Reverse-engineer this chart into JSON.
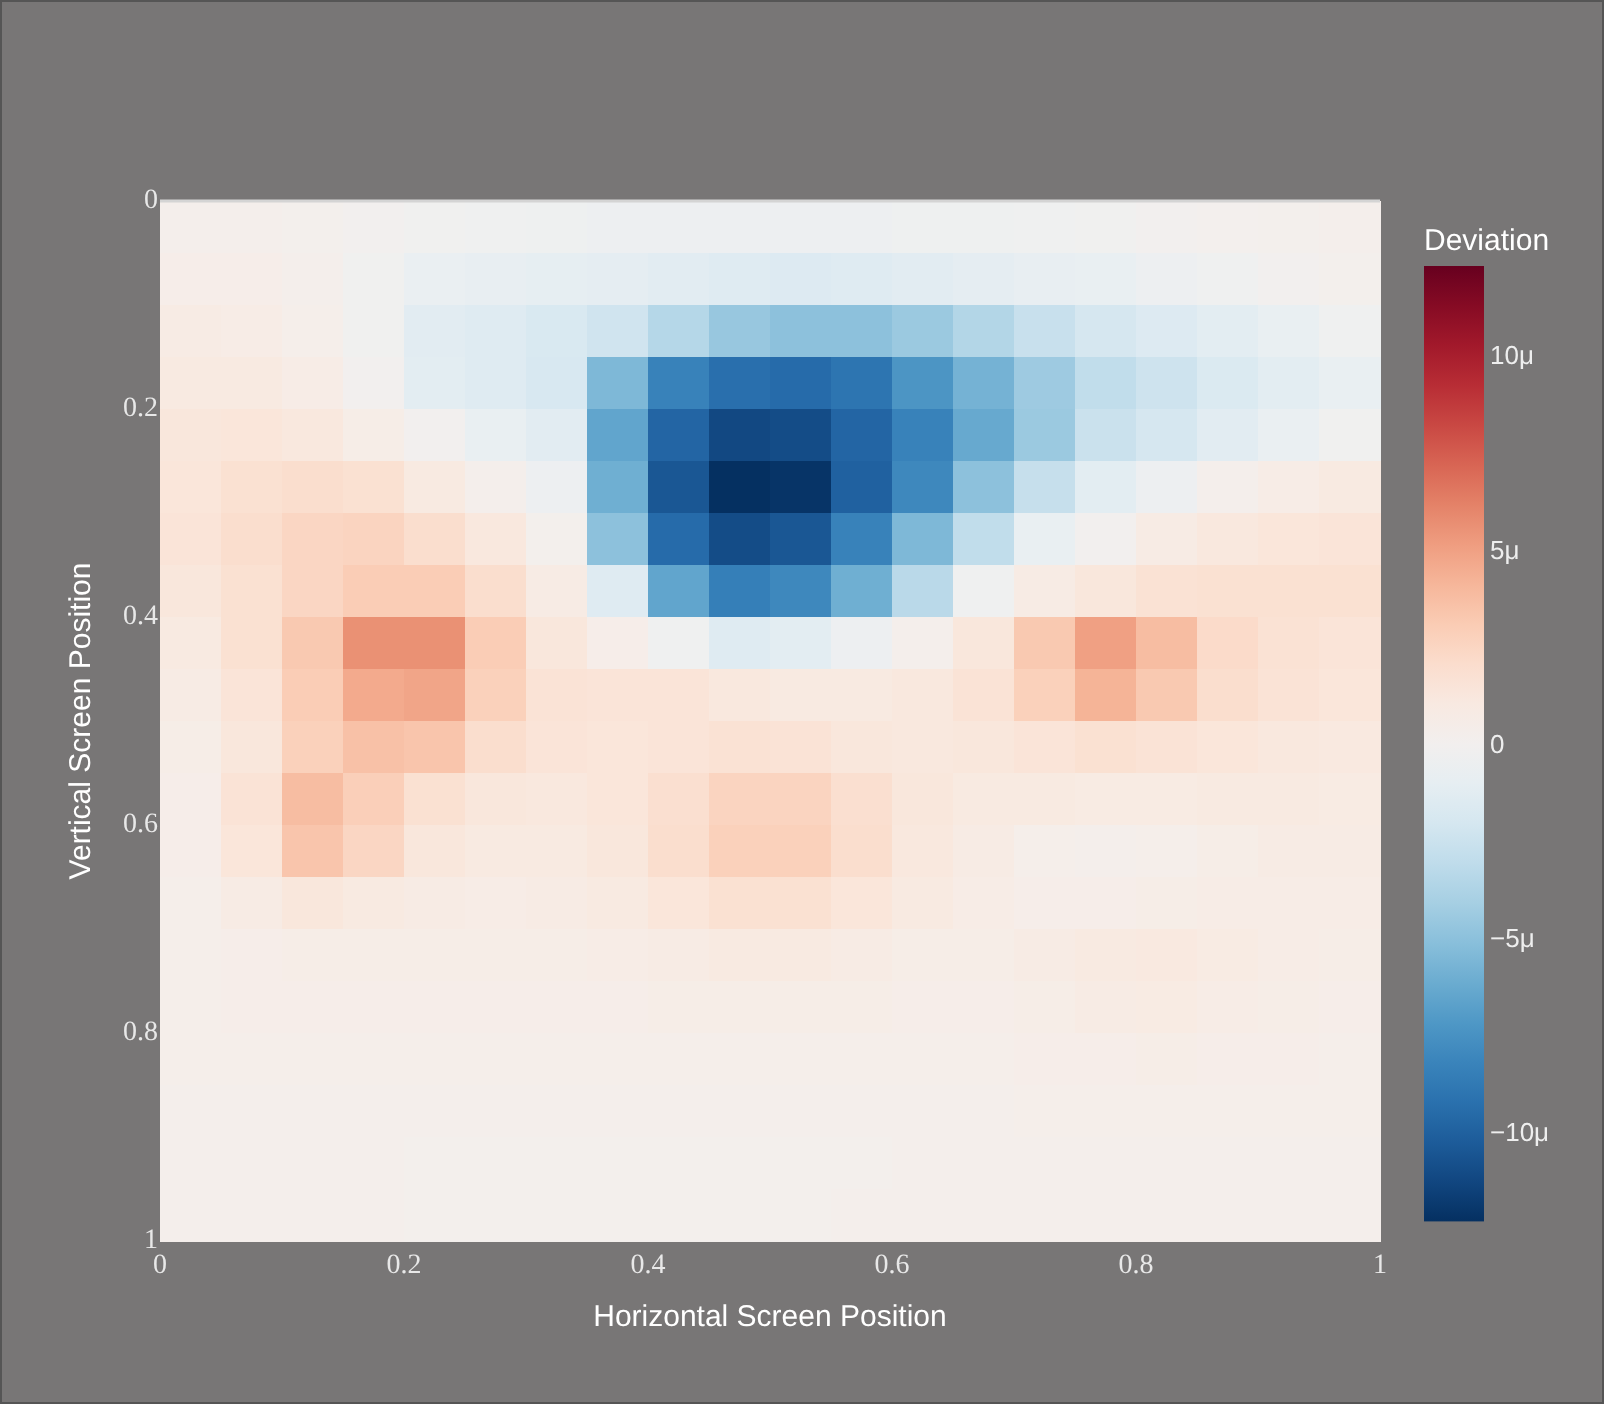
{
  "chart_data": {
    "type": "heatmap",
    "xlabel": "Horizontal Screen Position",
    "ylabel": "Vertical Screen Position",
    "clabel": "Deviation",
    "xlim": [
      0,
      1
    ],
    "xticks": [
      0,
      0.2,
      0.4,
      0.6,
      0.8,
      1
    ],
    "ylim": [
      1,
      0
    ],
    "yticks": [
      0,
      0.2,
      0.4,
      0.6,
      0.8,
      1
    ],
    "clim": [
      -12.3,
      12.3
    ],
    "cticks": [
      {
        "value": -10,
        "label": "−10μ"
      },
      {
        "value": -5,
        "label": "−5μ"
      },
      0,
      {
        "value": 5,
        "label": "5μ"
      },
      {
        "value": 10,
        "label": "10μ"
      }
    ],
    "cells": [
      [
        0.3,
        0.3,
        0.2,
        0.0,
        -0.2,
        -0.3,
        -0.4,
        -0.5,
        -0.5,
        -0.5,
        -0.5,
        -0.5,
        -0.4,
        -0.4,
        -0.3,
        -0.2,
        0.0,
        0.1,
        0.2,
        0.3
      ],
      [
        0.5,
        0.5,
        0.3,
        -0.2,
        -0.7,
        -0.9,
        -1.0,
        -1.1,
        -1.3,
        -1.5,
        -1.6,
        -1.5,
        -1.3,
        -1.1,
        -0.9,
        -0.8,
        -0.5,
        -0.3,
        0.0,
        0.2
      ],
      [
        0.8,
        0.7,
        0.4,
        -0.2,
        -1.3,
        -1.5,
        -1.8,
        -2.3,
        -3.5,
        -4.6,
        -5.0,
        -5.0,
        -4.5,
        -3.6,
        -2.7,
        -2.0,
        -1.6,
        -1.2,
        -0.8,
        -0.3
      ],
      [
        1.0,
        1.0,
        0.7,
        0.0,
        -1.2,
        -1.5,
        -1.9,
        -5.5,
        -8.3,
        -9.3,
        -9.5,
        -9.0,
        -7.3,
        -5.8,
        -4.4,
        -3.0,
        -2.4,
        -1.7,
        -1.2,
        -0.8
      ],
      [
        1.3,
        1.4,
        1.2,
        0.6,
        0.0,
        -0.8,
        -1.3,
        -6.5,
        -9.8,
        -11.2,
        -11.0,
        -9.8,
        -8.3,
        -6.3,
        -4.5,
        -2.6,
        -2.0,
        -1.3,
        -0.7,
        -0.2
      ],
      [
        1.4,
        1.8,
        2.0,
        1.8,
        1.0,
        0.3,
        -0.5,
        -6.0,
        -10.5,
        -12.3,
        -12.1,
        -10.0,
        -8.0,
        -5.0,
        -2.8,
        -1.2,
        -0.5,
        0.3,
        0.7,
        1.0
      ],
      [
        1.5,
        2.0,
        2.5,
        2.6,
        2.0,
        1.2,
        0.2,
        -5.0,
        -9.5,
        -11.0,
        -10.5,
        -8.3,
        -5.5,
        -3.0,
        -0.8,
        0.0,
        0.8,
        1.2,
        1.4,
        1.5
      ],
      [
        1.3,
        1.8,
        2.5,
        3.0,
        3.0,
        2.0,
        0.8,
        -1.5,
        -6.5,
        -8.5,
        -8.0,
        -6.0,
        -3.3,
        -0.3,
        0.8,
        1.3,
        1.7,
        1.8,
        1.8,
        1.8
      ],
      [
        1.0,
        1.8,
        3.2,
        5.6,
        5.6,
        3.0,
        1.3,
        0.5,
        -0.3,
        -1.5,
        -1.2,
        -0.5,
        0.3,
        1.3,
        3.2,
        5.0,
        3.8,
        2.2,
        1.7,
        1.5
      ],
      [
        0.8,
        1.5,
        3.0,
        4.6,
        4.8,
        2.8,
        1.6,
        1.5,
        1.5,
        1.2,
        1.0,
        1.0,
        1.2,
        1.6,
        2.8,
        4.2,
        3.2,
        2.0,
        1.6,
        1.4
      ],
      [
        0.6,
        1.3,
        2.8,
        3.6,
        3.4,
        2.0,
        1.5,
        1.4,
        1.5,
        1.7,
        1.6,
        1.3,
        1.2,
        1.3,
        1.5,
        1.8,
        1.6,
        1.4,
        1.2,
        1.1
      ],
      [
        0.5,
        1.6,
        3.8,
        2.9,
        1.8,
        1.3,
        1.2,
        1.4,
        1.9,
        2.6,
        2.6,
        1.9,
        1.3,
        1.0,
        1.0,
        0.9,
        0.9,
        1.0,
        1.0,
        0.9
      ],
      [
        0.5,
        1.4,
        3.4,
        2.5,
        1.3,
        1.0,
        1.0,
        1.3,
        2.0,
        2.8,
        2.8,
        2.0,
        1.2,
        0.8,
        0.4,
        0.3,
        0.4,
        0.6,
        0.8,
        0.8
      ],
      [
        0.4,
        0.8,
        1.3,
        1.0,
        0.8,
        0.7,
        0.8,
        1.0,
        1.4,
        1.8,
        1.8,
        1.4,
        1.0,
        0.7,
        0.5,
        0.5,
        0.6,
        0.7,
        0.7,
        0.7
      ],
      [
        0.4,
        0.5,
        0.6,
        0.6,
        0.6,
        0.6,
        0.6,
        0.7,
        0.8,
        1.0,
        1.0,
        0.8,
        0.6,
        0.6,
        0.8,
        1.0,
        1.1,
        0.9,
        0.7,
        0.6
      ],
      [
        0.4,
        0.5,
        0.5,
        0.5,
        0.5,
        0.5,
        0.5,
        0.5,
        0.6,
        0.6,
        0.6,
        0.6,
        0.5,
        0.5,
        0.6,
        0.8,
        0.9,
        0.7,
        0.6,
        0.5
      ],
      [
        0.4,
        0.4,
        0.4,
        0.4,
        0.4,
        0.4,
        0.4,
        0.4,
        0.4,
        0.4,
        0.4,
        0.4,
        0.4,
        0.4,
        0.5,
        0.5,
        0.6,
        0.5,
        0.5,
        0.4
      ],
      [
        0.3,
        0.3,
        0.3,
        0.3,
        0.3,
        0.3,
        0.3,
        0.3,
        0.3,
        0.3,
        0.3,
        0.3,
        0.3,
        0.3,
        0.4,
        0.4,
        0.4,
        0.4,
        0.4,
        0.4
      ],
      [
        0.3,
        0.3,
        0.3,
        0.3,
        0.2,
        0.2,
        0.2,
        0.2,
        0.2,
        0.2,
        0.2,
        0.2,
        0.3,
        0.3,
        0.3,
        0.3,
        0.3,
        0.3,
        0.3,
        0.3
      ],
      [
        0.3,
        0.3,
        0.3,
        0.3,
        0.2,
        0.2,
        0.2,
        0.2,
        0.2,
        0.2,
        0.2,
        0.3,
        0.3,
        0.3,
        0.3,
        0.3,
        0.3,
        0.3,
        0.3,
        0.3
      ]
    ]
  }
}
